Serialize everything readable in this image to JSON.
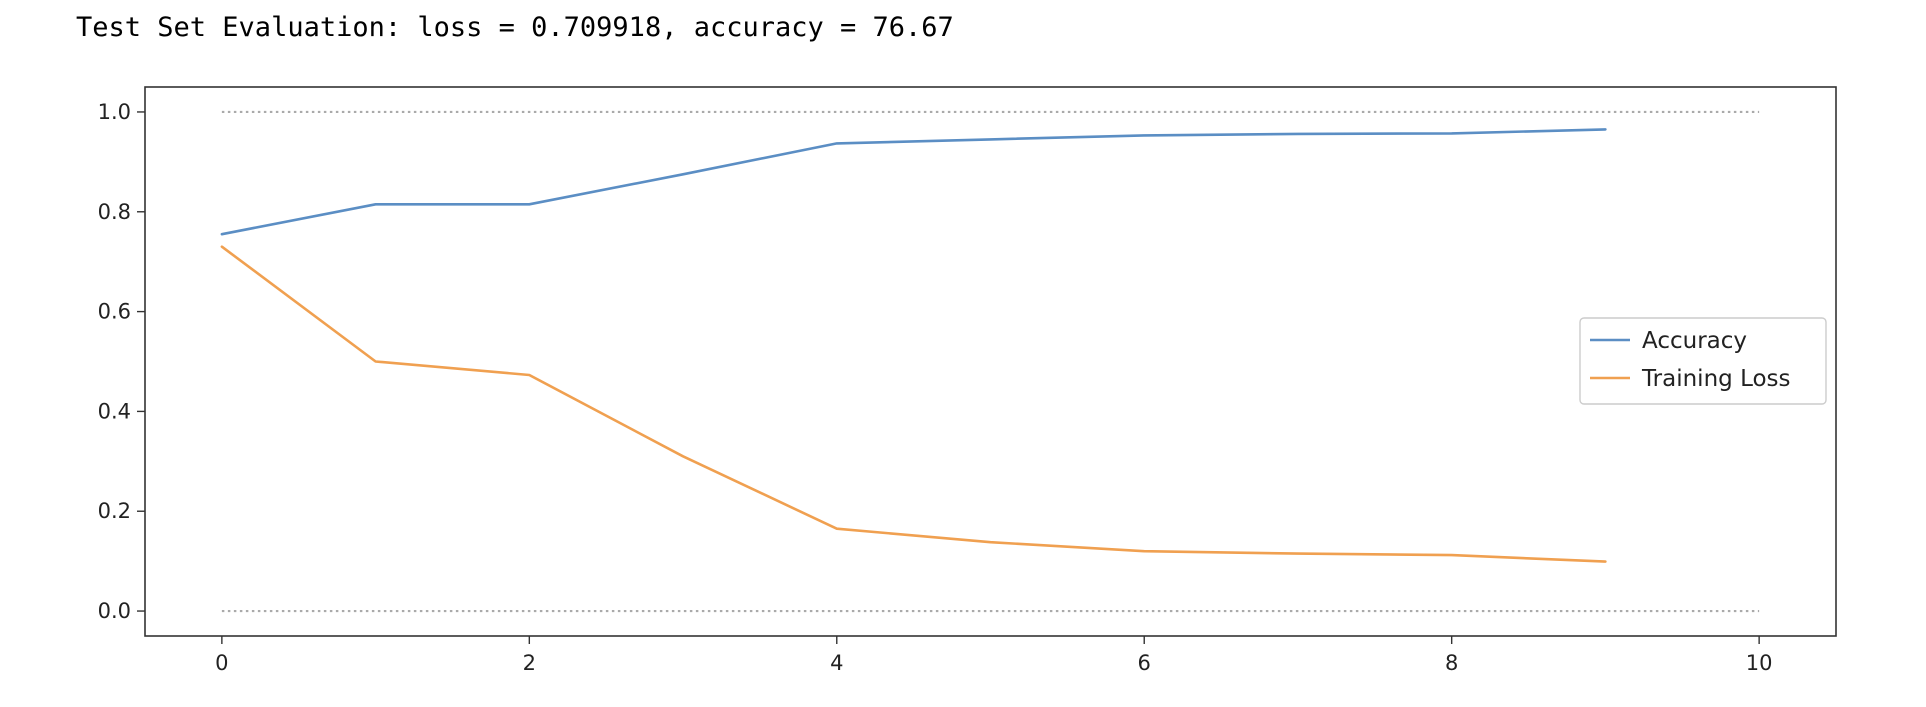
{
  "output": {
    "text": "Test Set Evaluation: loss = 0.709918, accuracy = 76.67"
  },
  "chart_data": {
    "type": "line",
    "title": "",
    "xlabel": "",
    "ylabel": "",
    "xlim": [
      -0.5,
      10.5
    ],
    "ylim": [
      -0.05,
      1.05
    ],
    "xticks": [
      0,
      2,
      4,
      6,
      8,
      10
    ],
    "yticks": [
      0.0,
      0.2,
      0.4,
      0.6,
      0.8,
      1.0
    ],
    "xtick_labels": [
      "0",
      "2",
      "4",
      "6",
      "8",
      "10"
    ],
    "ytick_labels": [
      "0.0",
      "0.2",
      "0.4",
      "0.6",
      "0.8",
      "1.0"
    ],
    "grid": false,
    "legend_position": "center-right",
    "reference_lines": [
      {
        "y": 1.0,
        "x_range": [
          0,
          10
        ],
        "style": "dotted",
        "color": "#aaaaaa"
      },
      {
        "y": 0.0,
        "x_range": [
          0,
          10
        ],
        "style": "dotted",
        "color": "#aaaaaa"
      }
    ],
    "series": [
      {
        "name": "Accuracy",
        "color": "#5b8ec4",
        "x": [
          0,
          1,
          2,
          3,
          4,
          5,
          6,
          7,
          8,
          9
        ],
        "y": [
          0.755,
          0.815,
          0.815,
          0.875,
          0.937,
          0.945,
          0.953,
          0.956,
          0.957,
          0.965
        ]
      },
      {
        "name": "Training Loss",
        "color": "#f0a050",
        "x": [
          0,
          1,
          2,
          3,
          4,
          5,
          6,
          7,
          8,
          9
        ],
        "y": [
          0.73,
          0.5,
          0.473,
          0.31,
          0.165,
          0.138,
          0.12,
          0.115,
          0.112,
          0.099
        ]
      }
    ]
  }
}
